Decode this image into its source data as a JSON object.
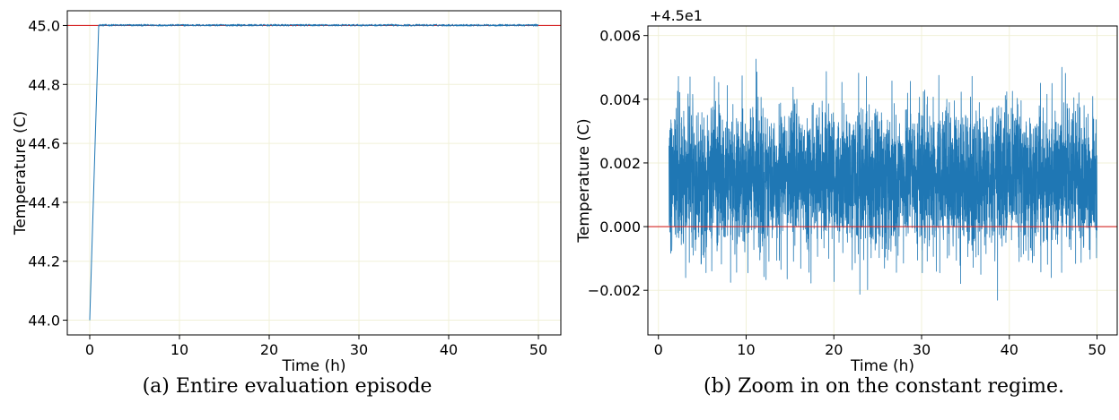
{
  "chart_data": [
    {
      "type": "line",
      "caption": "(a) Entire evaluation episode",
      "xlabel": "Time (h)",
      "ylabel": "Temperature (C)",
      "xlim": [
        -2.5,
        52.5
      ],
      "ylim": [
        43.95,
        45.05
      ],
      "xticks": [
        0,
        10,
        20,
        30,
        40,
        50
      ],
      "yticks": [
        44.0,
        44.2,
        44.4,
        44.6,
        44.8,
        45.0
      ],
      "ytick_labels": [
        "44.0",
        "44.2",
        "44.4",
        "44.6",
        "44.8",
        "45.0"
      ],
      "grid": true,
      "series": [
        {
          "color": "#1f77b4",
          "description": "ramp from 44.0 at t=0 to ~45.0 at t≈1 h, then hold at ~45.001 (noise ±0.004) until t=50 h",
          "x": [
            0,
            1,
            50
          ],
          "y": [
            44.0,
            45.001,
            45.001
          ],
          "noise_amplitude": 0.003
        }
      ],
      "reference_line": {
        "y": 45.0,
        "color": "#d62728"
      }
    },
    {
      "type": "line",
      "caption": "(b) Zoom in on the constant regime.",
      "xlabel": "Time (h)",
      "ylabel": "Temperature (C)",
      "offset_text": "+4.5e1",
      "xlim": [
        -1.2,
        52.3
      ],
      "ylim": [
        -0.0034,
        0.0063
      ],
      "xticks": [
        0,
        10,
        20,
        30,
        40,
        50
      ],
      "yticks": [
        -0.002,
        0.0,
        0.002,
        0.004,
        0.006
      ],
      "ytick_labels": [
        "−0.002",
        "0.000",
        "0.002",
        "0.004",
        "0.006"
      ],
      "grid": true,
      "series": [
        {
          "color": "#1f77b4",
          "description": "noisy temperature signal around offset 45.0 between t≈1.2 h and t=50 h",
          "x_range": [
            1.2,
            50
          ],
          "mean": 0.0015,
          "std": 0.0011,
          "min": -0.003,
          "max": 0.0059
        }
      ],
      "reference_line": {
        "y": 0.0,
        "color": "#d62728"
      }
    }
  ]
}
